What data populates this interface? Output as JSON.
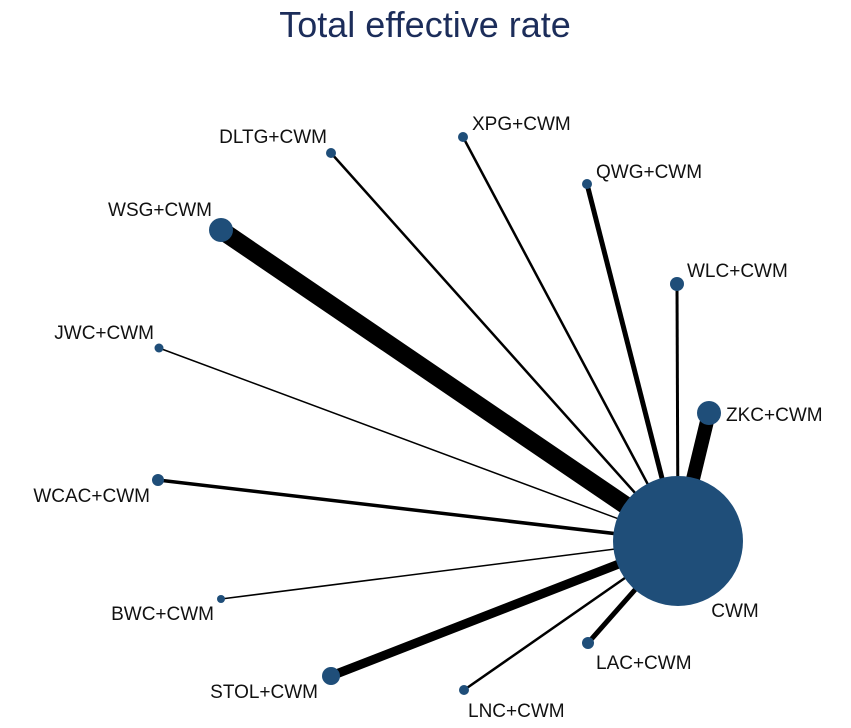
{
  "title": "Total effective rate",
  "colors": {
    "title": "#1c2d5a",
    "node": "#1f4e79",
    "edge": "#000000"
  },
  "hub": {
    "label": "CWM"
  },
  "nodes": [
    {
      "id": "xpg",
      "label": "XPG+CWM"
    },
    {
      "id": "dltg",
      "label": "DLTG+CWM"
    },
    {
      "id": "qwg",
      "label": "QWG+CWM"
    },
    {
      "id": "wsg",
      "label": "WSG+CWM"
    },
    {
      "id": "wlc",
      "label": "WLC+CWM"
    },
    {
      "id": "jwc",
      "label": "JWC+CWM"
    },
    {
      "id": "zkc",
      "label": "ZKC+CWM"
    },
    {
      "id": "wcac",
      "label": "WCAC+CWM"
    },
    {
      "id": "bwc",
      "label": "BWC+CWM"
    },
    {
      "id": "lac",
      "label": "LAC+CWM"
    },
    {
      "id": "stol",
      "label": "STOL+CWM"
    },
    {
      "id": "lnc",
      "label": "LNC+CWM"
    }
  ]
}
